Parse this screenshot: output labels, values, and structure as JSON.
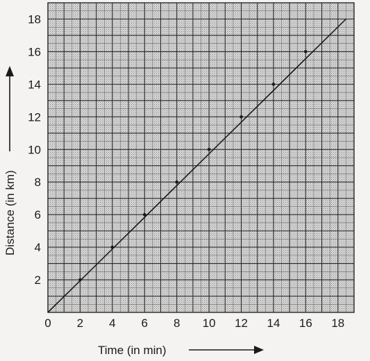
{
  "chart_data": {
    "type": "line",
    "title": "",
    "xlabel": "Time (in min)",
    "ylabel": "Distance (in km)",
    "xlim": [
      0,
      19
    ],
    "ylim": [
      0,
      19
    ],
    "x_ticks": [
      0,
      2,
      4,
      6,
      8,
      10,
      12,
      14,
      16,
      18
    ],
    "y_ticks": [
      2,
      4,
      6,
      8,
      10,
      12,
      14,
      16,
      18
    ],
    "x_tick_labels": [
      "0",
      "2",
      "4",
      "6",
      "8",
      "10",
      "12",
      "14",
      "16",
      "18"
    ],
    "y_tick_labels": [
      "2",
      "4",
      "6",
      "8",
      "10",
      "12",
      "14",
      "16",
      "18"
    ],
    "grid": true,
    "series": [
      {
        "x": [
          0,
          18.5
        ],
        "y": [
          0,
          18
        ],
        "color": "#1a1a1a"
      }
    ],
    "marked_points": {
      "x": [
        2,
        4,
        6,
        8,
        10,
        12,
        14,
        16
      ],
      "y": [
        2,
        4,
        6,
        8,
        10,
        12,
        14,
        16
      ]
    }
  },
  "colors": {
    "grid_fill": "#cfcfcf",
    "grid_major": "#2a2a2a",
    "grid_minor": "#5a5a5a",
    "line": "#1a1a1a"
  }
}
